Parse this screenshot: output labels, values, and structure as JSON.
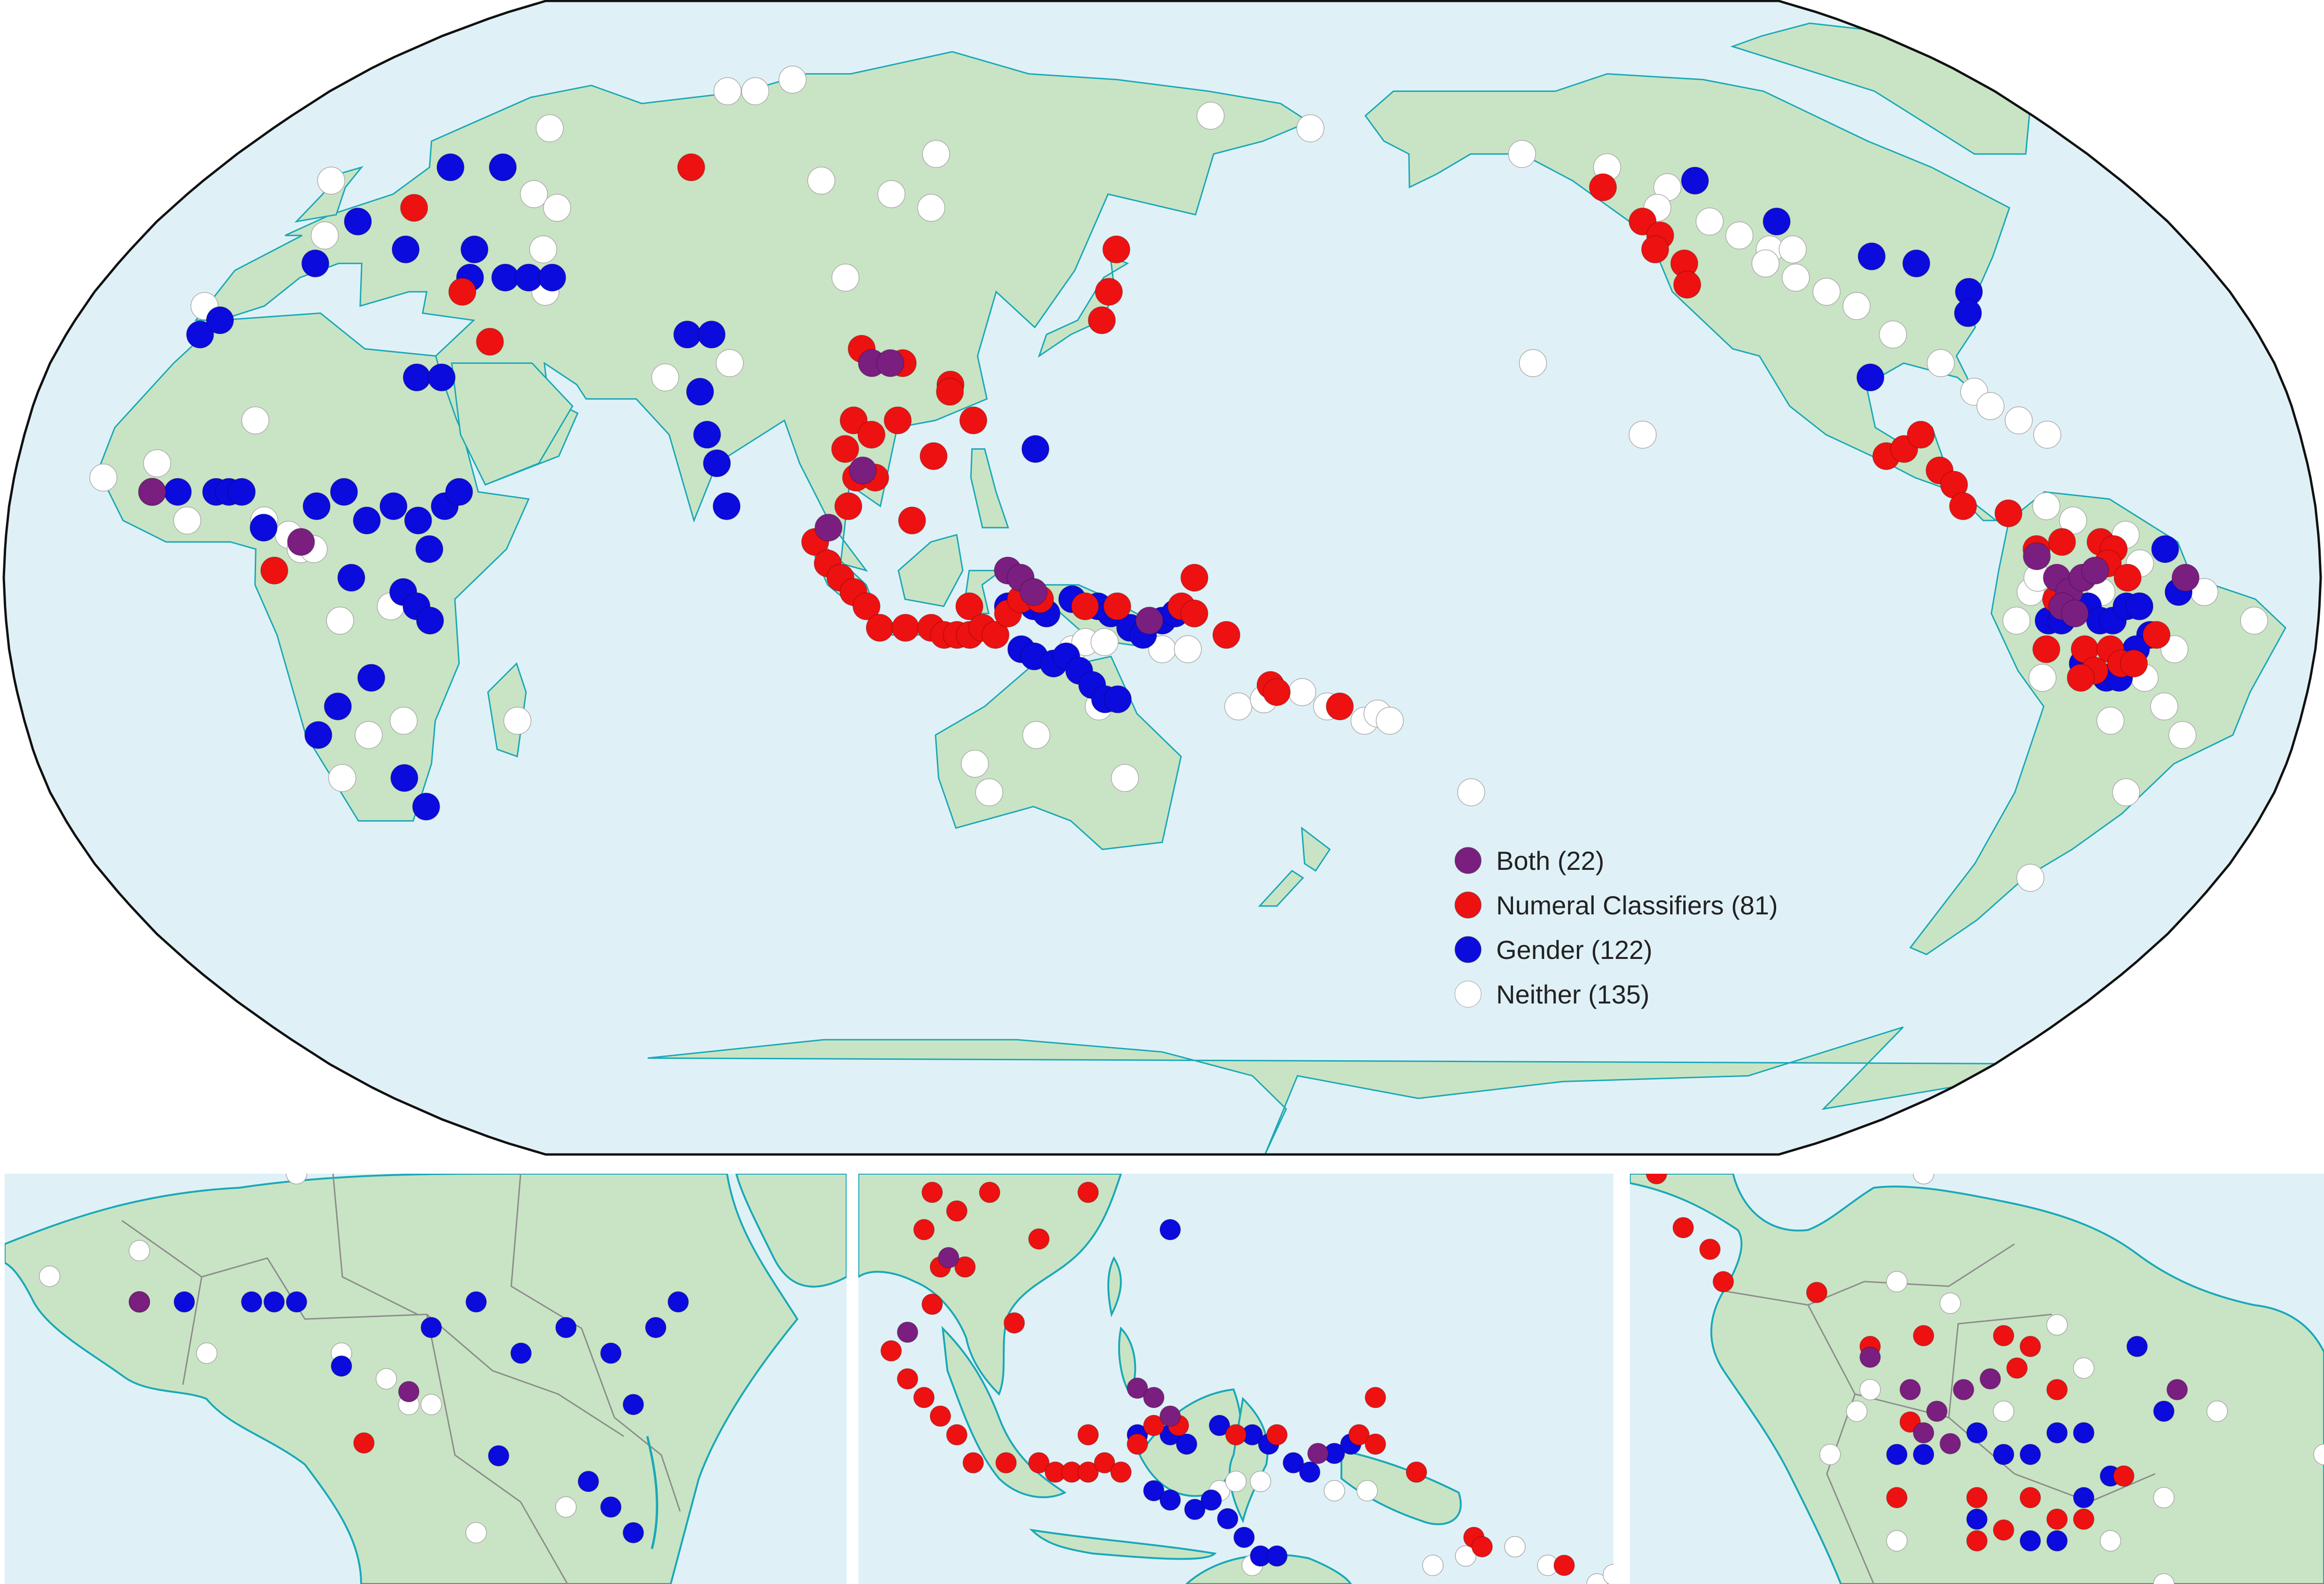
{
  "colors": {
    "ocean": "#dff1f7",
    "land": "#c9e4c4",
    "coast": "#19a8b8",
    "border": "#8c8c8c",
    "both": "#7a1e80",
    "numeral_classifiers": "#ee1111",
    "gender": "#0b0bdd",
    "neither": "#ffffff"
  },
  "legend": {
    "items": [
      {
        "key": "both",
        "label": "Both (22)"
      },
      {
        "key": "numeral_classifiers",
        "label": "Numeral Classifiers (81)"
      },
      {
        "key": "gender",
        "label": "Gender (122)"
      },
      {
        "key": "neither",
        "label": "Neither (135)"
      }
    ]
  },
  "map": {
    "projection": "Robinson, Pacific-centred",
    "insets": [
      "West/Central Africa",
      "Southeast Asia & Melanesia",
      "Northern South America"
    ]
  },
  "points": {
    "both": [
      [
        -8,
        12
      ],
      [
        16,
        5
      ],
      [
        103,
        30
      ],
      [
        106,
        30
      ],
      [
        103,
        15
      ],
      [
        98,
        7
      ],
      [
        126,
        1
      ],
      [
        128,
        0
      ],
      [
        130,
        -2
      ],
      [
        148,
        -6
      ],
      [
        -71,
        0
      ],
      [
        -69,
        -2
      ],
      [
        -67,
        0
      ],
      [
        -65,
        1
      ],
      [
        -70,
        -4
      ],
      [
        -51,
        0
      ],
      [
        -74,
        3
      ],
      [
        -68,
        -5
      ]
    ],
    "numeral_classifiers": [
      [
        -8,
        12
      ],
      [
        12,
        1
      ],
      [
        14,
        52
      ],
      [
        32,
        40
      ],
      [
        40,
        33
      ],
      [
        60,
        58
      ],
      [
        111,
        8
      ],
      [
        114,
        17
      ],
      [
        120,
        22
      ],
      [
        140,
        36
      ],
      [
        141,
        40
      ],
      [
        142,
        46
      ],
      [
        116,
        27
      ],
      [
        108,
        30
      ],
      [
        101,
        32
      ],
      [
        108,
        22
      ],
      [
        116,
        26
      ],
      [
        101,
        22
      ],
      [
        104,
        20
      ],
      [
        100,
        18
      ],
      [
        102,
        14
      ],
      [
        105,
        14
      ],
      [
        101,
        10
      ],
      [
        96,
        5
      ],
      [
        98,
        2
      ],
      [
        100,
        0
      ],
      [
        102,
        -2
      ],
      [
        104,
        -4
      ],
      [
        106,
        -7
      ],
      [
        110,
        -7
      ],
      [
        114,
        -7
      ],
      [
        116,
        -8
      ],
      [
        118,
        -8
      ],
      [
        120,
        -8
      ],
      [
        120,
        -4
      ],
      [
        122,
        -7
      ],
      [
        124,
        -8
      ],
      [
        126,
        -5
      ],
      [
        128,
        -3
      ],
      [
        131,
        -3
      ],
      [
        138,
        -4
      ],
      [
        143,
        -4
      ],
      [
        153,
        -4
      ],
      [
        155,
        -5
      ],
      [
        160,
        -8
      ],
      [
        167,
        -15
      ],
      [
        168,
        -16
      ],
      [
        178,
        -18
      ],
      [
        155,
        0
      ],
      [
        -124,
        50
      ],
      [
        -128,
        55
      ],
      [
        -122,
        48
      ],
      [
        -124,
        46
      ],
      [
        -120,
        44
      ],
      [
        -121,
        41
      ],
      [
        -96,
        17
      ],
      [
        -93,
        18
      ],
      [
        -90,
        20
      ],
      [
        -88,
        15
      ],
      [
        -86,
        13
      ],
      [
        -85,
        10
      ],
      [
        -78,
        9
      ],
      [
        -74,
        4
      ],
      [
        -70,
        5
      ],
      [
        -64,
        5
      ],
      [
        -62,
        4
      ],
      [
        -63,
        2
      ],
      [
        -60,
        0
      ],
      [
        -71,
        -3
      ],
      [
        -66,
        -10
      ],
      [
        -62,
        -10
      ],
      [
        -60,
        -12
      ],
      [
        -58,
        -12
      ],
      [
        -55,
        -8
      ],
      [
        -64,
        -13
      ],
      [
        -72,
        -10
      ],
      [
        -66,
        -14
      ]
    ],
    "gender": [
      [
        -8,
        12
      ],
      [
        2,
        12
      ],
      [
        -4,
        12
      ],
      [
        4,
        12
      ],
      [
        6,
        12
      ],
      [
        10,
        7
      ],
      [
        18,
        10
      ],
      [
        22,
        12
      ],
      [
        26,
        8
      ],
      [
        30,
        10
      ],
      [
        34,
        8
      ],
      [
        38,
        10
      ],
      [
        40,
        12
      ],
      [
        36,
        4
      ],
      [
        32,
        -2
      ],
      [
        34,
        -4
      ],
      [
        36,
        -6
      ],
      [
        24,
        0
      ],
      [
        26,
        -14
      ],
      [
        16,
        -22
      ],
      [
        28,
        -28
      ],
      [
        20,
        -18
      ],
      [
        30,
        -32
      ],
      [
        -8,
        34
      ],
      [
        -6,
        36
      ],
      [
        6,
        50
      ],
      [
        4,
        44
      ],
      [
        18,
        46
      ],
      [
        30,
        46
      ],
      [
        24,
        58
      ],
      [
        14,
        58
      ],
      [
        32,
        42
      ],
      [
        38,
        42
      ],
      [
        42,
        42
      ],
      [
        46,
        42
      ],
      [
        30,
        28
      ],
      [
        34,
        28
      ],
      [
        72,
        34
      ],
      [
        76,
        34
      ],
      [
        76,
        26
      ],
      [
        78,
        20
      ],
      [
        80,
        16
      ],
      [
        82,
        10
      ],
      [
        126,
        -4
      ],
      [
        130,
        -4
      ],
      [
        132,
        -5
      ],
      [
        136,
        -3
      ],
      [
        140,
        -4
      ],
      [
        142,
        -5
      ],
      [
        145,
        -7
      ],
      [
        147,
        -8
      ],
      [
        150,
        -6
      ],
      [
        152,
        -5
      ],
      [
        128,
        -10
      ],
      [
        130,
        -11
      ],
      [
        133,
        -12
      ],
      [
        135,
        -11
      ],
      [
        137,
        -13
      ],
      [
        139,
        -15
      ],
      [
        141,
        -17
      ],
      [
        143,
        -17
      ],
      [
        130,
        18
      ],
      [
        -110,
        56
      ],
      [
        -100,
        50
      ],
      [
        -87,
        45
      ],
      [
        -80,
        44
      ],
      [
        -74,
        40
      ],
      [
        -76,
        37
      ],
      [
        -96,
        28
      ],
      [
        -72,
        -6
      ],
      [
        -70,
        -6
      ],
      [
        -66,
        -4
      ],
      [
        -64,
        -6
      ],
      [
        -62,
        -6
      ],
      [
        -60,
        -4
      ],
      [
        -58,
        -4
      ],
      [
        -56,
        -8
      ],
      [
        -52,
        -2
      ],
      [
        -54,
        4
      ],
      [
        -66,
        -12
      ],
      [
        -62,
        -14
      ],
      [
        -58,
        -10
      ],
      [
        -60,
        -14
      ]
    ],
    "neither": [
      [
        -16,
        14
      ],
      [
        -8,
        16
      ],
      [
        -2,
        8
      ],
      [
        6,
        22
      ],
      [
        10,
        8
      ],
      [
        14,
        6
      ],
      [
        16,
        4
      ],
      [
        18,
        4
      ],
      [
        30,
        -4
      ],
      [
        22,
        -6
      ],
      [
        24,
        -22
      ],
      [
        18,
        -28
      ],
      [
        30,
        -20
      ],
      [
        48,
        -20
      ],
      [
        -10,
        38
      ],
      [
        -6,
        56
      ],
      [
        2,
        48
      ],
      [
        26,
        64
      ],
      [
        34,
        54
      ],
      [
        40,
        52
      ],
      [
        42,
        46
      ],
      [
        46,
        40
      ],
      [
        56,
        70
      ],
      [
        62,
        70
      ],
      [
        68,
        72
      ],
      [
        86,
        56
      ],
      [
        100,
        54
      ],
      [
        108,
        52
      ],
      [
        106,
        60
      ],
      [
        96,
        42
      ],
      [
        80,
        30
      ],
      [
        70,
        28
      ],
      [
        120,
        -26
      ],
      [
        122,
        -30
      ],
      [
        130,
        -22
      ],
      [
        144,
        -28
      ],
      [
        140,
        -18
      ],
      [
        136,
        -10
      ],
      [
        138,
        -9
      ],
      [
        141,
        -9
      ],
      [
        150,
        -10
      ],
      [
        154,
        -10
      ],
      [
        162,
        -18
      ],
      [
        166,
        -17
      ],
      [
        172,
        -16
      ],
      [
        176,
        -18
      ],
      [
        182,
        -20
      ],
      [
        184,
        -19
      ],
      [
        186,
        -20
      ],
      [
        200,
        -30
      ],
      [
        160,
        66
      ],
      [
        180,
        64
      ],
      [
        -140,
        60
      ],
      [
        -125,
        58
      ],
      [
        -116,
        55
      ],
      [
        -120,
        52
      ],
      [
        -112,
        50
      ],
      [
        -108,
        48
      ],
      [
        -104,
        46
      ],
      [
        -100,
        46
      ],
      [
        -106,
        44
      ],
      [
        -102,
        42
      ],
      [
        -98,
        40
      ],
      [
        -94,
        38
      ],
      [
        -90,
        34
      ],
      [
        -84,
        30
      ],
      [
        -80,
        26
      ],
      [
        -78,
        24
      ],
      [
        -74,
        22
      ],
      [
        -70,
        20
      ],
      [
        -150,
        30
      ],
      [
        -134,
        20
      ],
      [
        -72,
        10
      ],
      [
        -68,
        8
      ],
      [
        -60,
        6
      ],
      [
        -64,
        -2
      ],
      [
        -58,
        2
      ],
      [
        -48,
        -2
      ],
      [
        -40,
        -6
      ],
      [
        -52,
        -18
      ],
      [
        -48,
        -22
      ],
      [
        -54,
        -30
      ],
      [
        -62,
        -42
      ],
      [
        -75,
        -2
      ],
      [
        -74,
        0
      ],
      [
        -77,
        -6
      ],
      [
        -72,
        -14
      ],
      [
        -60,
        -20
      ],
      [
        -58,
        -4
      ],
      [
        -52,
        -10
      ],
      [
        -56,
        -14
      ]
    ]
  },
  "inset_points": {
    "africa": {
      "both": [
        [
          280,
          400
        ],
        [
          200,
          455
        ]
      ],
      "numeral_classifiers": [
        [
          202,
          456
        ],
        [
          437,
          474
        ]
      ],
      "gender": [
        [
          178,
          372
        ],
        [
          245,
          408
        ],
        [
          255,
          415
        ],
        [
          377,
          415
        ],
        [
          424,
          410
        ],
        [
          460,
          436
        ],
        [
          475,
          348
        ],
        [
          520,
          408
        ],
        [
          519,
          400
        ],
        [
          569,
          380
        ],
        [
          474,
          445
        ],
        [
          488,
          394
        ],
        [
          468,
          380
        ],
        [
          441,
          410
        ],
        [
          475,
          330
        ],
        [
          470,
          500
        ]
      ],
      "neither": [
        [
          10,
          404
        ],
        [
          200,
          390
        ],
        [
          410,
          270
        ],
        [
          238,
          392
        ],
        [
          290,
          384
        ],
        [
          282,
          391
        ],
        [
          287,
          390
        ],
        [
          218,
          442
        ],
        [
          226,
          450
        ],
        [
          390,
          420
        ],
        [
          280,
          410
        ],
        [
          420,
          380
        ],
        [
          400,
          445
        ]
      ]
    }
  }
}
